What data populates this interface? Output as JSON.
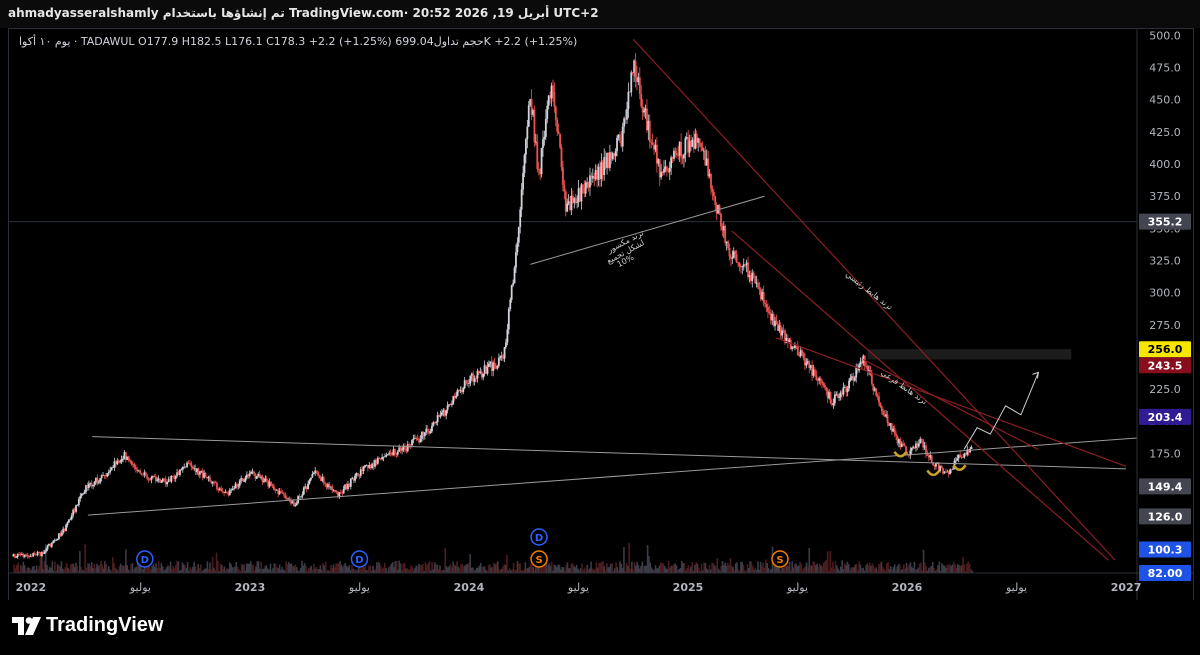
{
  "header": {
    "title": "ahmadyasseralshamly تم إنشاؤها باستخدام TradingView.com· 20:52 2026 ,19 أبريل UTC+2"
  },
  "legend": {
    "text": "يوم ١٠ أكوا · TADAWUL  O177.9  H182.5  L176.1  C178.3  +2.2 (+1.25%)  حجم تداول699.04K  +2.2 (+1.25%)"
  },
  "brand": {
    "name": "TradingView"
  },
  "colors": {
    "background": "#000000",
    "candle_up": "#d1d4dc",
    "candle_down": "#ef5350",
    "trendline": "#8b1e24",
    "neutral_line": "#9a9a9a"
  },
  "chart_data": {
    "type": "candlestick",
    "symbol": "TADAWUL",
    "ylim": [
      82,
      505
    ],
    "xlim": [
      2021.9,
      2027.05
    ],
    "y_ticks": [
      500.0,
      475.0,
      450.0,
      425.0,
      400.0,
      375.0,
      350.0,
      325.0,
      300.0,
      275.0,
      250.0,
      225.0,
      200.0,
      175.0,
      150.0,
      125.0,
      100.0
    ],
    "y_tick_labels": [
      "500.0",
      "475.0",
      "450.0",
      "425.0",
      "400.0",
      "375.0",
      "350.0",
      "325.0",
      "300.0",
      "275.0",
      "250.0",
      "225.0",
      "200.0",
      "175.0",
      "150.0",
      "125.0",
      "100.0"
    ],
    "x_ticks": [
      {
        "t": 2022.0,
        "label": "2022"
      },
      {
        "t": 2022.5,
        "label": "يوليو"
      },
      {
        "t": 2023.0,
        "label": "2023"
      },
      {
        "t": 2023.5,
        "label": "يوليو"
      },
      {
        "t": 2024.0,
        "label": "2024"
      },
      {
        "t": 2024.5,
        "label": "يوليو"
      },
      {
        "t": 2025.0,
        "label": "2025"
      },
      {
        "t": 2025.5,
        "label": "يوليو"
      },
      {
        "t": 2026.0,
        "label": "2026"
      },
      {
        "t": 2026.5,
        "label": "يوليو"
      },
      {
        "t": 2027.0,
        "label": "2027"
      }
    ],
    "price_path": [
      [
        2021.92,
        95
      ],
      [
        2022.05,
        97
      ],
      [
        2022.15,
        115
      ],
      [
        2022.25,
        148
      ],
      [
        2022.35,
        160
      ],
      [
        2022.42,
        174
      ],
      [
        2022.52,
        158
      ],
      [
        2022.62,
        152
      ],
      [
        2022.72,
        168
      ],
      [
        2022.8,
        156
      ],
      [
        2022.9,
        143
      ],
      [
        2023.0,
        160
      ],
      [
        2023.1,
        150
      ],
      [
        2023.2,
        135
      ],
      [
        2023.3,
        160
      ],
      [
        2023.4,
        142
      ],
      [
        2023.5,
        160
      ],
      [
        2023.6,
        172
      ],
      [
        2023.7,
        178
      ],
      [
        2023.8,
        190
      ],
      [
        2023.9,
        210
      ],
      [
        2024.0,
        232
      ],
      [
        2024.08,
        240
      ],
      [
        2024.16,
        250
      ],
      [
        2024.22,
        340
      ],
      [
        2024.28,
        455
      ],
      [
        2024.32,
        390
      ],
      [
        2024.38,
        470
      ],
      [
        2024.44,
        365
      ],
      [
        2024.55,
        385
      ],
      [
        2024.62,
        400
      ],
      [
        2024.7,
        420
      ],
      [
        2024.75,
        480
      ],
      [
        2024.8,
        440
      ],
      [
        2024.88,
        390
      ],
      [
        2024.96,
        410
      ],
      [
        2025.05,
        420
      ],
      [
        2025.12,
        375
      ],
      [
        2025.18,
        335
      ],
      [
        2025.26,
        322
      ],
      [
        2025.34,
        295
      ],
      [
        2025.42,
        270
      ],
      [
        2025.5,
        255
      ],
      [
        2025.58,
        235
      ],
      [
        2025.66,
        215
      ],
      [
        2025.74,
        230
      ],
      [
        2025.8,
        248
      ],
      [
        2025.87,
        215
      ],
      [
        2025.94,
        190
      ],
      [
        2026.0,
        175
      ],
      [
        2026.06,
        185
      ],
      [
        2026.12,
        168
      ],
      [
        2026.18,
        158
      ],
      [
        2026.24,
        172
      ],
      [
        2026.3,
        178.3
      ]
    ],
    "horizontal_lines": [
      {
        "y": 355.2,
        "style": "thin"
      }
    ],
    "trendlines": [
      {
        "x1": 2022.28,
        "y1": 188,
        "x2": 2027.0,
        "y2": 163,
        "color": "neutral"
      },
      {
        "x1": 2022.26,
        "y1": 127,
        "x2": 2027.05,
        "y2": 187,
        "color": "neutral"
      },
      {
        "x1": 2024.28,
        "y1": 322,
        "x2": 2025.35,
        "y2": 375,
        "color": "neutral"
      },
      {
        "x1": 2024.75,
        "y1": 497,
        "x2": 2026.95,
        "y2": 92,
        "color": "red"
      },
      {
        "x1": 2025.2,
        "y1": 348,
        "x2": 2026.92,
        "y2": 92,
        "color": "red"
      },
      {
        "x1": 2025.4,
        "y1": 265,
        "x2": 2027.0,
        "y2": 165,
        "color": "red"
      },
      {
        "x1": 2025.8,
        "y1": 248,
        "x2": 2026.6,
        "y2": 178,
        "color": "red"
      }
    ],
    "zone": {
      "x1": 2025.82,
      "x2": 2026.75,
      "y1": 248,
      "y2": 256
    },
    "projection": [
      [
        2026.26,
        178
      ],
      [
        2026.32,
        195
      ],
      [
        2026.38,
        190
      ],
      [
        2026.45,
        212
      ],
      [
        2026.52,
        205
      ],
      [
        2026.6,
        238
      ]
    ],
    "bottom_markers": [
      2025.97,
      2026.12,
      2026.24
    ],
    "annotations": [
      {
        "x": 2024.72,
        "y": 338,
        "text": "ترند مكسور",
        "rotate": -28
      },
      {
        "x": 2024.72,
        "y": 330,
        "text": "لشكل تجميع",
        "rotate": -28
      },
      {
        "x": 2024.72,
        "y": 323,
        "text": "10%",
        "rotate": -28
      },
      {
        "x": 2025.82,
        "y": 300,
        "text": "ترند هابط رئيسي",
        "rotate": 38
      },
      {
        "x": 2025.98,
        "y": 225,
        "text": "ترند هابط فرعي",
        "rotate": 35
      }
    ],
    "price_labels": [
      {
        "value": 355.2,
        "label": "355.2",
        "bg": "#434651",
        "fg": "#ffffff"
      },
      {
        "value": 256.0,
        "label": "256.0",
        "bg": "#f7e600",
        "fg": "#000000"
      },
      {
        "value": 243.5,
        "label": "243.5",
        "bg": "#880e1d",
        "fg": "#ffffff"
      },
      {
        "value": 203.4,
        "label": "203.4",
        "bg": "#311b92",
        "fg": "#ffffff"
      },
      {
        "value": 149.4,
        "label": "149.4",
        "bg": "#434651",
        "fg": "#ffffff"
      },
      {
        "value": 126.0,
        "label": "126.0",
        "bg": "#434651",
        "fg": "#ffffff"
      },
      {
        "value": 100.3,
        "label": "100.3",
        "bg": "#1e53e5",
        "fg": "#ffffff"
      },
      {
        "value": 82.0,
        "label": "82.00",
        "bg": "#1e53e5",
        "fg": "#ffffff"
      }
    ],
    "event_markers": [
      {
        "t": 2022.52,
        "letter": "D",
        "kind": "dividend",
        "row": 0
      },
      {
        "t": 2023.5,
        "letter": "D",
        "kind": "dividend",
        "row": 0
      },
      {
        "t": 2024.32,
        "letter": "D",
        "kind": "dividend",
        "row": 1
      },
      {
        "t": 2024.32,
        "letter": "S",
        "kind": "split",
        "row": 0
      },
      {
        "t": 2025.42,
        "letter": "S",
        "kind": "split",
        "row": 0
      }
    ]
  }
}
